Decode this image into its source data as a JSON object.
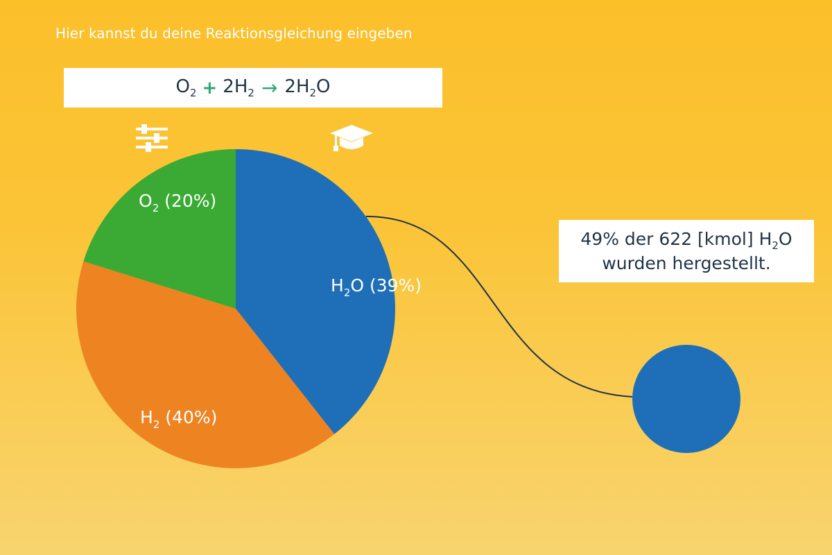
{
  "hint": "Hier kannst du deine Reaktionsgleichung eingeben",
  "equation": {
    "reactant1": "O",
    "reactant1_sub": "2",
    "plus": "+",
    "reactant2": "2H",
    "reactant2_sub": "2",
    "arrow": "→",
    "product": "2H",
    "product_sub": "2",
    "product_tail": "O"
  },
  "icons": {
    "settings": "sliders-icon",
    "learn": "graduation-cap-icon"
  },
  "chart_data": {
    "type": "pie",
    "slices": [
      {
        "label": "H2O",
        "percent": 39,
        "color": "#1f6fb8"
      },
      {
        "label": "H2",
        "percent": 40,
        "color": "#ee8322"
      },
      {
        "label": "O2",
        "percent": 20,
        "color": "#3aaa35"
      }
    ]
  },
  "labels": {
    "o2": {
      "main": "O",
      "sub": "2",
      "rest": " (20%)"
    },
    "h2": {
      "main": "H",
      "sub": "2",
      "rest": " (40%)"
    },
    "h2o": {
      "main": "H",
      "sub": "2",
      "rest": "O (39%)"
    }
  },
  "result": {
    "line1_pre": "49% der 622 [kmol] H",
    "line1_sub": "2",
    "line1_post": "O",
    "line2": "wurden hergestellt."
  },
  "colors": {
    "accent": "#2aa776",
    "connector": "#1f3347",
    "node": "#1f6fb8"
  }
}
